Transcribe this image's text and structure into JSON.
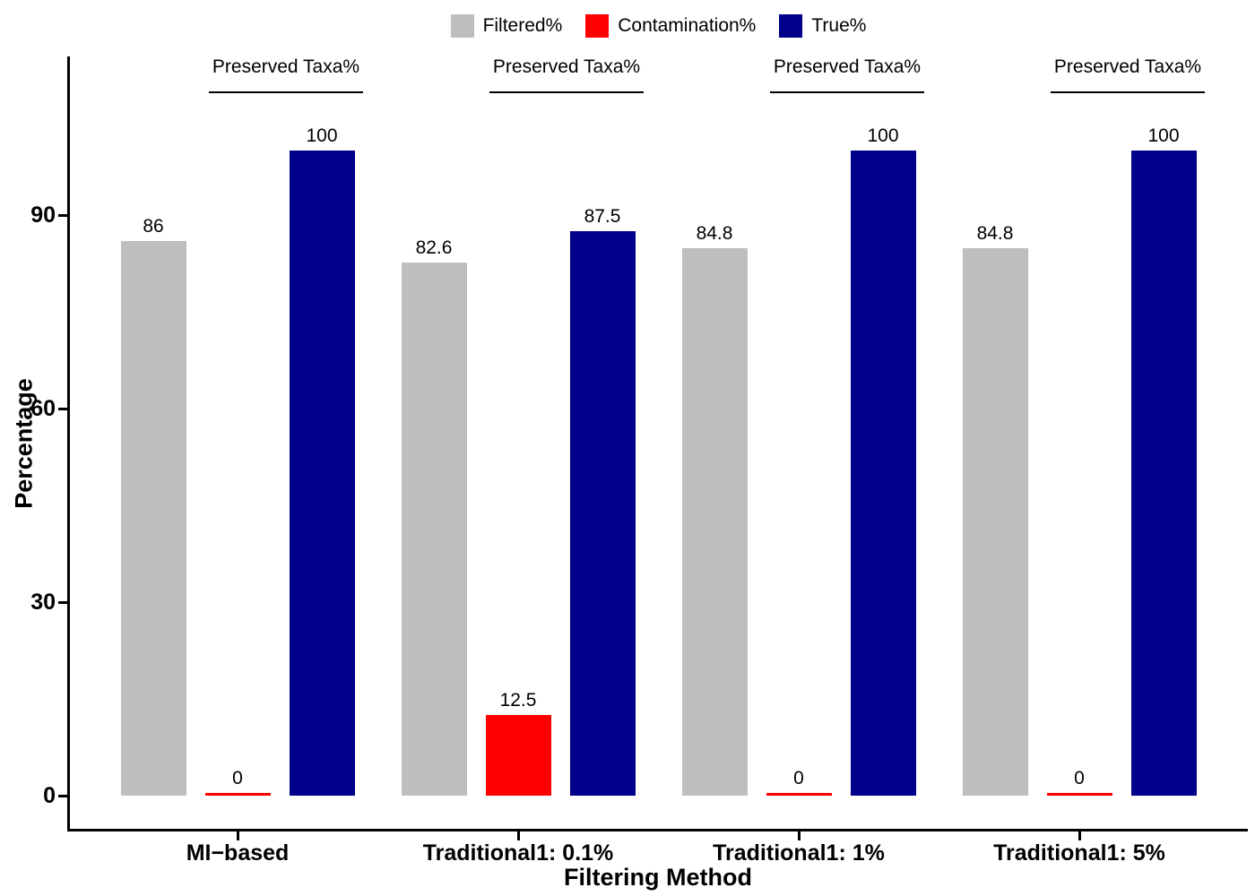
{
  "chart_data": {
    "type": "bar",
    "title": "",
    "xlabel": "Filtering Method",
    "ylabel": "Percentage",
    "categories": [
      "MI−based",
      "Traditional1: 0.1%",
      "Traditional1: 1%",
      "Traditional1: 5%"
    ],
    "series": [
      {
        "name": "Filtered%",
        "color": "#BEBEBE",
        "values": [
          86,
          82.6,
          84.8,
          84.8
        ]
      },
      {
        "name": "Contamination%",
        "color": "#FF0000",
        "values": [
          0,
          12.5,
          0,
          0
        ]
      },
      {
        "name": "True%",
        "color": "#00008B",
        "values": [
          100,
          87.5,
          100,
          100
        ]
      }
    ],
    "value_labels": [
      [
        "86",
        "0",
        "100"
      ],
      [
        "82.6",
        "12.5",
        "87.5"
      ],
      [
        "84.8",
        "0",
        "100"
      ],
      [
        "84.8",
        "0",
        "100"
      ]
    ],
    "group_annotation_text": "Preserved Taxa%",
    "yticks": [
      "0",
      "30",
      "60",
      "90"
    ],
    "ylim": [
      0,
      114
    ],
    "grid": false,
    "legend_position": "top",
    "axis_color": "#000000",
    "text_color": "#000000",
    "background_color": "#FFFFFF"
  }
}
